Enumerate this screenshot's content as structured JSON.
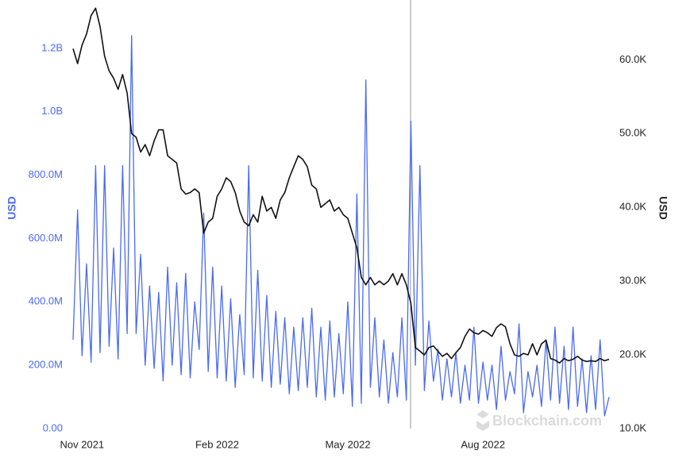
{
  "chart_data": {
    "type": "line",
    "y_label": "USD",
    "y2_label": "USD",
    "watermark": "Blockchain.com",
    "categories": [
      null,
      null,
      "Nov 2021",
      null,
      null,
      null,
      null,
      null,
      null,
      null,
      null,
      null,
      null,
      null,
      null,
      null,
      null,
      null,
      null,
      null,
      null,
      null,
      null,
      null,
      null,
      null,
      null,
      null,
      null,
      null,
      null,
      null,
      "Feb 2022",
      null,
      null,
      null,
      null,
      null,
      null,
      null,
      null,
      null,
      null,
      null,
      null,
      null,
      null,
      null,
      null,
      null,
      null,
      null,
      null,
      null,
      null,
      null,
      null,
      null,
      null,
      null,
      null,
      "May 2022",
      null,
      null,
      null,
      null,
      null,
      null,
      null,
      null,
      null,
      null,
      null,
      null,
      null,
      null,
      null,
      null,
      null,
      null,
      null,
      null,
      null,
      null,
      null,
      null,
      null,
      null,
      null,
      null,
      null,
      "Aug 2022",
      null,
      null,
      null,
      null,
      null,
      null,
      null,
      null,
      null,
      null,
      null,
      null,
      null,
      null,
      null,
      null,
      null,
      null,
      null,
      null,
      null,
      null,
      null,
      null,
      null,
      null,
      null,
      null
    ],
    "series": [
      {
        "color": "#4a6af0",
        "axis": "y",
        "values": [
          280000000.0,
          690000000.0,
          230000000.0,
          520000000.0,
          210000000.0,
          830000000.0,
          240000000.0,
          830000000.0,
          260000000.0,
          570000000.0,
          220000000.0,
          830000000.0,
          300000000.0,
          1240000000.0,
          300000000.0,
          550000000.0,
          200000000.0,
          450000000.0,
          190000000.0,
          430000000.0,
          150000000.0,
          510000000.0,
          200000000.0,
          460000000.0,
          170000000.0,
          490000000.0,
          160000000.0,
          400000000.0,
          250000000.0,
          680000000.0,
          180000000.0,
          510000000.0,
          160000000.0,
          450000000.0,
          150000000.0,
          410000000.0,
          130000000.0,
          360000000.0,
          170000000.0,
          830000000.0,
          160000000.0,
          500000000.0,
          150000000.0,
          420000000.0,
          130000000.0,
          370000000.0,
          140000000.0,
          350000000.0,
          110000000.0,
          320000000.0,
          120000000.0,
          350000000.0,
          130000000.0,
          380000000.0,
          100000000.0,
          320000000.0,
          90000000.0,
          340000000.0,
          100000000.0,
          300000000.0,
          110000000.0,
          400000000.0,
          70000000.0,
          740000000.0,
          80000000.0,
          1100000000.0,
          130000000.0,
          350000000.0,
          100000000.0,
          280000000.0,
          80000000.0,
          240000000.0,
          100000000.0,
          350000000.0,
          90000000.0,
          970000000.0,
          200000000.0,
          830000000.0,
          120000000.0,
          340000000.0,
          150000000.0,
          250000000.0,
          90000000.0,
          220000000.0,
          100000000.0,
          240000000.0,
          80000000.0,
          200000000.0,
          90000000.0,
          320000000.0,
          80000000.0,
          210000000.0,
          90000000.0,
          200000000.0,
          60000000.0,
          260000000.0,
          90000000.0,
          180000000.0,
          110000000.0,
          330000000.0,
          50000000.0,
          180000000.0,
          100000000.0,
          200000000.0,
          70000000.0,
          280000000.0,
          90000000.0,
          320000000.0,
          80000000.0,
          260000000.0,
          60000000.0,
          320000000.0,
          70000000.0,
          220000000.0,
          50000000.0,
          230000000.0,
          60000000.0,
          280000000.0,
          40000000.0,
          100000000.0
        ]
      },
      {
        "color": "#111111",
        "axis": "y2",
        "values": [
          61500,
          59500,
          62000,
          63500,
          66000,
          67000,
          64500,
          60500,
          58500,
          57500,
          56000,
          58000,
          55500,
          50000,
          49500,
          47500,
          48500,
          47000,
          49000,
          50500,
          50500,
          47000,
          46500,
          46000,
          42500,
          41800,
          42000,
          42500,
          42000,
          36500,
          38000,
          38500,
          41500,
          42500,
          44000,
          43500,
          42000,
          39500,
          38000,
          37500,
          39000,
          38000,
          41500,
          39500,
          40000,
          38500,
          41000,
          42000,
          44000,
          45500,
          47000,
          46500,
          45500,
          43000,
          42500,
          40000,
          40500,
          41000,
          39500,
          40000,
          39000,
          38500,
          36500,
          34500,
          30500,
          29500,
          30500,
          29500,
          30000,
          29500,
          30000,
          31000,
          29500,
          31000,
          29500,
          27000,
          21000,
          20500,
          20000,
          21000,
          21200,
          20500,
          19800,
          20200,
          19500,
          20300,
          21000,
          22500,
          23500,
          23000,
          22800,
          23300,
          23000,
          22500,
          23700,
          24200,
          23800,
          21500,
          20000,
          19800,
          20200,
          20000,
          21500,
          20000,
          21500,
          22000,
          19500,
          19300,
          18900,
          19500,
          19200,
          19400,
          19800,
          19300,
          19100,
          19200,
          19100,
          19500,
          19200,
          19400
        ]
      }
    ],
    "ylim": [
      0,
      1350000000.0
    ],
    "yticks": [
      {
        "value": 0,
        "label": "0.00"
      },
      {
        "value": 200000000.0,
        "label": "200.0M"
      },
      {
        "value": 400000000.0,
        "label": "400.0M"
      },
      {
        "value": 600000000.0,
        "label": "600.0M"
      },
      {
        "value": 800000000.0,
        "label": "800.0M"
      },
      {
        "value": 1000000000.0,
        "label": "1.0B"
      },
      {
        "value": 1200000000.0,
        "label": "1.2B"
      }
    ],
    "y2lim": [
      10000,
      68000
    ],
    "y2ticks": [
      {
        "value": 10000,
        "label": "10.0K"
      },
      {
        "value": 20000,
        "label": "20.0K"
      },
      {
        "value": 30000,
        "label": "30.0K"
      },
      {
        "value": 40000,
        "label": "40.0K"
      },
      {
        "value": 50000,
        "label": "50.0K"
      },
      {
        "value": 60000,
        "label": "60.0K"
      }
    ],
    "grid": false
  }
}
